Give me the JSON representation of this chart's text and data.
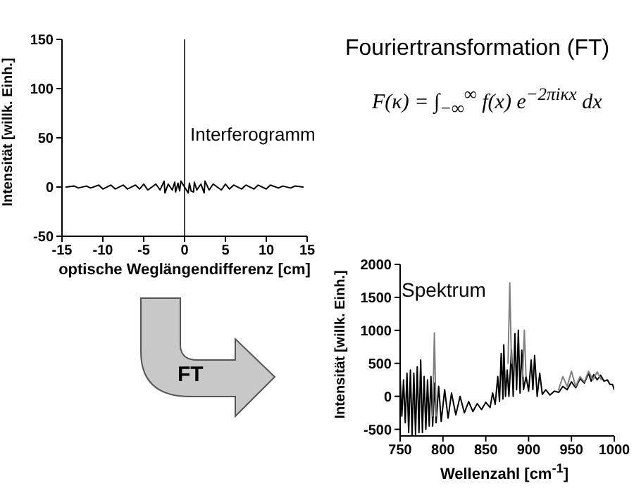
{
  "chart_data": [
    {
      "type": "line",
      "xlabel": "optische Weglängendifferenz [cm]",
      "ylabel": "Intensität [willk. Einh.]",
      "xlim": [
        -15,
        15
      ],
      "xticks": [
        -15,
        -10,
        -5,
        0,
        5,
        10,
        15
      ],
      "ylim": [
        -50,
        150
      ],
      "yticks": [
        -50,
        0,
        50,
        100,
        150
      ],
      "grid": false,
      "series": [
        {
          "color": "#000000",
          "x": [
            -14.5,
            -13.5,
            -13,
            -12,
            -11.5,
            -10.5,
            -10,
            -9,
            -8.5,
            -7.5,
            -7,
            -6,
            -5.5,
            -5,
            -4.5,
            -3.5,
            -3,
            -2.5,
            -2.4,
            -2,
            -1.5,
            -1.2,
            -1.1,
            -0.8,
            -0.6,
            -0.45,
            0,
            0.45,
            0.6,
            0.8,
            1.1,
            1.2,
            1.5,
            2,
            2.4,
            2.5,
            3,
            3.5,
            4.5,
            5,
            5.5,
            6,
            7,
            7.5,
            8.5,
            9,
            10,
            10.5,
            11.5,
            12,
            13,
            13.5,
            14.5
          ],
          "values": [
            0,
            1,
            -1,
            1,
            -1,
            2,
            -2,
            2,
            -2,
            2,
            -2,
            2,
            -2,
            3,
            -3,
            3,
            -3,
            6,
            -6,
            3,
            -3,
            5,
            -5,
            4,
            -4,
            6,
            0,
            -6,
            4,
            -4,
            -5,
            5,
            -3,
            3,
            -6,
            6,
            -3,
            3,
            -3,
            3,
            -2,
            2,
            -2,
            2,
            -2,
            2,
            -2,
            2,
            -1,
            1,
            -1,
            1,
            0
          ]
        }
      ],
      "ref_lines": [
        {
          "axis": "x",
          "value": 0,
          "color": "#404040"
        }
      ],
      "annotations": [
        "Interferogramm",
        "Fouriertransformation (FT)",
        "F(κ) = ∫$_{−∞}$$^{∞}$ f(x) e$^{−2πiκx}$ dx"
      ]
    },
    {
      "type": "line",
      "xlabel": "Wellenzahl [cm$^{-1}$]",
      "ylabel": "Intensität [willk. Einh.]",
      "xlim": [
        750,
        1000
      ],
      "xticks": [
        750,
        800,
        850,
        900,
        950,
        1000
      ],
      "ylim": [
        -600,
        2000
      ],
      "yticks": [
        -500,
        0,
        500,
        1000,
        1500,
        2000
      ],
      "grid": false,
      "series": [
        {
          "color": "#000000",
          "x": [
            750,
            752,
            754,
            756,
            758,
            760,
            762,
            764,
            766,
            768,
            770,
            772,
            774,
            776,
            778,
            780,
            782,
            784,
            786,
            788,
            790,
            792,
            795,
            798,
            802,
            806,
            810,
            815,
            820,
            825,
            830,
            835,
            840,
            845,
            850,
            855,
            858,
            861,
            864,
            866,
            868,
            870,
            871,
            873,
            875,
            877,
            880,
            882,
            884,
            886,
            888,
            890,
            892,
            894,
            897,
            900,
            903,
            905,
            907,
            910,
            913,
            916,
            920,
            925,
            930,
            935,
            940,
            945,
            950,
            955,
            960,
            965,
            970,
            973,
            976,
            980,
            984,
            988,
            992,
            995,
            998,
            1000
          ],
          "values": [
            300,
            -300,
            250,
            -400,
            350,
            -550,
            400,
            -580,
            350,
            -580,
            450,
            -550,
            550,
            -550,
            300,
            -500,
            250,
            -450,
            300,
            -450,
            200,
            -400,
            150,
            -380,
            100,
            -330,
            50,
            -280,
            0,
            -250,
            -80,
            -230,
            -110,
            -200,
            -90,
            -170,
            50,
            -120,
            300,
            -80,
            650,
            -40,
            780,
            0,
            400,
            0,
            700,
            0,
            950,
            100,
            1000,
            50,
            700,
            100,
            300,
            80,
            550,
            100,
            620,
            0,
            350,
            30,
            100,
            20,
            80,
            60,
            150,
            100,
            220,
            130,
            270,
            200,
            350,
            230,
            330,
            250,
            320,
            230,
            250,
            180,
            180,
            100
          ]
        },
        {
          "color": "#808080",
          "x": [
            788,
            790,
            792,
            793,
            876,
            878,
            880,
            881,
            893,
            895,
            897,
            898,
            935,
            940,
            945,
            950,
            955,
            960,
            965,
            970,
            975,
            980,
            985
          ],
          "values": [
            -300,
            960,
            -300,
            null,
            500,
            1720,
            500,
            null,
            300,
            1000,
            300,
            null,
            100,
            300,
            150,
            380,
            150,
            300,
            220,
            380,
            250,
            370,
            250
          ]
        }
      ],
      "annotations": [
        "Spektrum",
        "FT"
      ]
    }
  ]
}
